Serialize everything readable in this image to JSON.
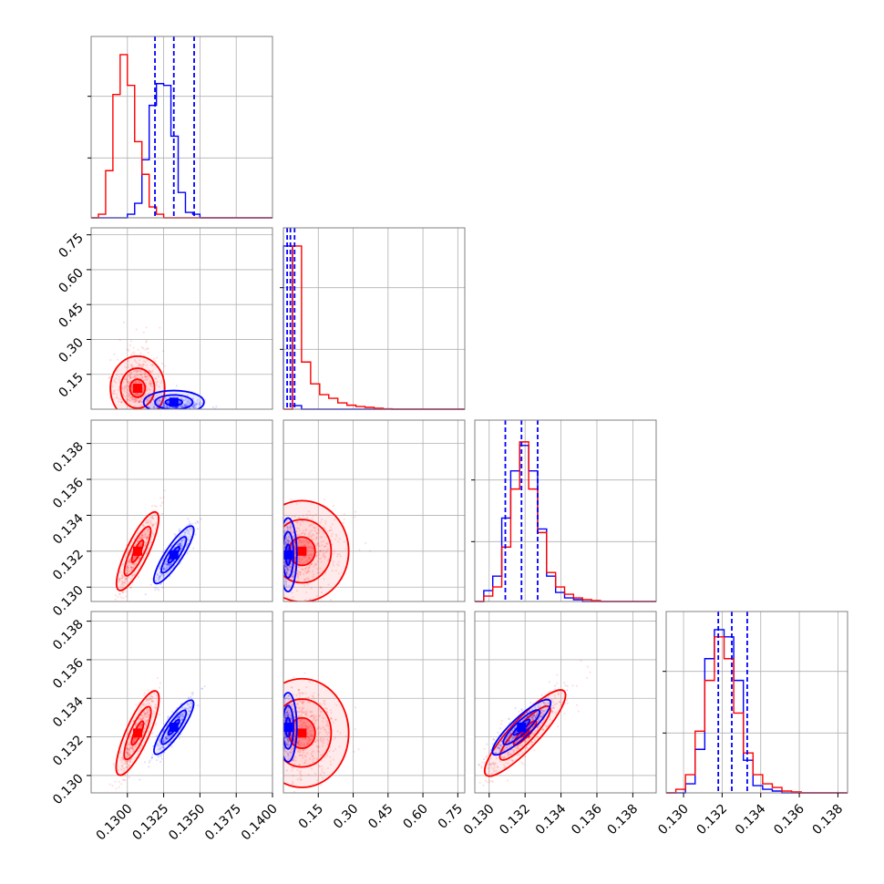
{
  "chart_data": {
    "type": "corner",
    "series": [
      {
        "name": "",
        "color": "#ff0000"
      },
      {
        "name": "",
        "color": "#0000ff"
      }
    ],
    "parameters": [
      {
        "range": [
          0.1275,
          0.14
        ],
        "ticks": [
          "0.1300",
          "0.1325",
          "0.1350",
          "0.1375",
          "0.1400"
        ],
        "tick_values": [
          0.13,
          0.1325,
          0.135,
          0.1375,
          0.14
        ]
      },
      {
        "range": [
          0.0,
          0.78
        ],
        "ticks": [
          "0.15",
          "0.30",
          "0.45",
          "0.60",
          "0.75"
        ],
        "tick_values": [
          0.15,
          0.3,
          0.45,
          0.6,
          0.75
        ]
      },
      {
        "range": [
          0.1292,
          0.1393
        ],
        "ticks": [
          "0.130",
          "0.132",
          "0.134",
          "0.136",
          "0.138"
        ],
        "tick_values": [
          0.13,
          0.132,
          0.134,
          0.136,
          0.138
        ]
      },
      {
        "range": [
          0.1291,
          0.1385
        ],
        "ticks": [
          "0.130",
          "0.132",
          "0.134",
          "0.136",
          "0.138"
        ],
        "tick_values": [
          0.13,
          0.132,
          0.134,
          0.136,
          0.138
        ]
      }
    ],
    "histograms": [
      {
        "bin_edges": [
          0.1275,
          0.128,
          0.1285,
          0.129,
          0.1295,
          0.13,
          0.1305,
          0.131,
          0.1315,
          0.132,
          0.1325,
          0.133,
          0.1335,
          0.134,
          0.1345,
          0.135,
          0.1355,
          0.136,
          0.1365,
          0.137,
          0.14
        ],
        "red": [
          0.0,
          0.02,
          0.26,
          0.68,
          0.9,
          0.73,
          0.42,
          0.24,
          0.06,
          0.02,
          0.0,
          0.0,
          0.0,
          0.0,
          0.0,
          0.0,
          0.0,
          0.0,
          0.0,
          0.0
        ],
        "blue": [
          0.0,
          0.0,
          0.0,
          0.0,
          0.0,
          0.02,
          0.08,
          0.32,
          0.62,
          0.74,
          0.73,
          0.45,
          0.14,
          0.03,
          0.02,
          0.0,
          0.0,
          0.0,
          0.0,
          0.0
        ],
        "quantile_lines_blue": [
          0.1319,
          0.1332,
          0.1346
        ]
      },
      {
        "bin_edges": [
          0.0,
          0.039,
          0.078,
          0.117,
          0.156,
          0.195,
          0.234,
          0.273,
          0.312,
          0.351,
          0.39,
          0.429,
          0.468,
          0.507,
          0.546,
          0.585,
          0.624,
          0.663,
          0.702,
          0.741,
          0.78
        ],
        "red": [
          0.0,
          0.9,
          0.26,
          0.14,
          0.08,
          0.06,
          0.035,
          0.022,
          0.015,
          0.01,
          0.005,
          0.002,
          0.0,
          0.0,
          0.0,
          0.0,
          0.0,
          0.0,
          0.0,
          0.0
        ],
        "blue": [
          0.9,
          0.02,
          0.0,
          0.0,
          0.0,
          0.0,
          0.0,
          0.0,
          0.0,
          0.0,
          0.0,
          0.0,
          0.0,
          0.0,
          0.0,
          0.0,
          0.0,
          0.0,
          0.0,
          0.0
        ],
        "quantile_lines_blue": [
          0.016,
          0.03,
          0.048
        ]
      },
      {
        "bin_edges": [
          0.1292,
          0.1297,
          0.1302,
          0.1307,
          0.1312,
          0.1317,
          0.1322,
          0.1327,
          0.1332,
          0.1337,
          0.1342,
          0.1347,
          0.1352,
          0.1357,
          0.1362,
          0.1367,
          0.1372,
          0.1377,
          0.1382,
          0.1387,
          0.1393
        ],
        "red": [
          0.0,
          0.03,
          0.08,
          0.3,
          0.62,
          0.88,
          0.62,
          0.38,
          0.16,
          0.08,
          0.04,
          0.02,
          0.01,
          0.005,
          0.0,
          0.0,
          0.0,
          0.0,
          0.0,
          0.0
        ],
        "blue": [
          0.0,
          0.06,
          0.14,
          0.46,
          0.72,
          0.86,
          0.72,
          0.4,
          0.14,
          0.05,
          0.02,
          0.01,
          0.0,
          0.0,
          0.0,
          0.0,
          0.0,
          0.0,
          0.0,
          0.0
        ],
        "quantile_lines_blue": [
          0.1309,
          0.1318,
          0.1327
        ]
      },
      {
        "bin_edges": [
          0.1291,
          0.1296,
          0.1301,
          0.1306,
          0.1311,
          0.1316,
          0.1321,
          0.1326,
          0.1331,
          0.1336,
          0.1341,
          0.1346,
          0.1351,
          0.1356,
          0.1361,
          0.1366,
          0.1371,
          0.1376,
          0.1381,
          0.1385
        ],
        "red": [
          0.0,
          0.02,
          0.1,
          0.34,
          0.62,
          0.86,
          0.74,
          0.44,
          0.22,
          0.1,
          0.05,
          0.03,
          0.01,
          0.005,
          0.0,
          0.0,
          0.0,
          0.0,
          0.0
        ],
        "blue": [
          0.0,
          0.0,
          0.05,
          0.24,
          0.74,
          0.9,
          0.86,
          0.62,
          0.18,
          0.04,
          0.02,
          0.01,
          0.0,
          0.0,
          0.0,
          0.0,
          0.0,
          0.0,
          0.0
        ],
        "quantile_lines_blue": [
          0.1318,
          0.1325,
          0.1333
        ]
      }
    ],
    "distributions": {
      "red": {
        "mean": [
          0.1307,
          0.11,
          0.132,
          0.1322
        ],
        "sd": [
          0.00065,
          0.08,
          0.0011,
          0.0011
        ]
      },
      "blue": {
        "mean": [
          0.1332,
          0.03,
          0.1318,
          0.1325
        ],
        "sd": [
          0.00065,
          0.02,
          0.0008,
          0.0007
        ]
      }
    },
    "grid": true
  }
}
